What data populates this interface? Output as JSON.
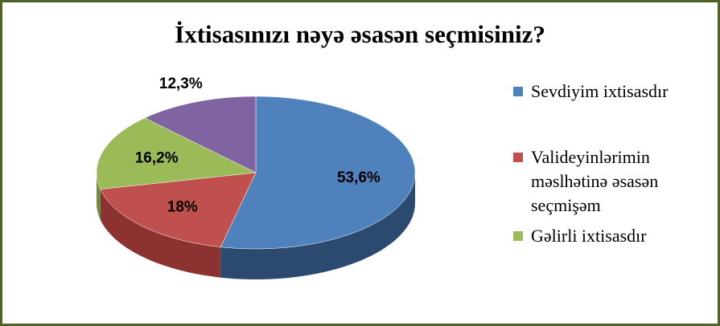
{
  "chart_data": {
    "type": "pie3d",
    "title": "İxtisasınızı nəyə əsasən seçmisiniz?",
    "categories": [
      "Sevdiyim ixtisasdır",
      "Valideyinlərimin məslhətinə əsasən seçmişəm",
      "Gəlirli ixtisasdır",
      null
    ],
    "values": [
      53.6,
      18,
      16.2,
      12.3
    ],
    "value_labels": [
      "53,6%",
      "18%",
      "16,2%",
      "12,3%"
    ],
    "colors": [
      "#4f81bd",
      "#c0504d",
      "#9bbb59",
      "#8064a2"
    ],
    "side_colors": [
      "#2c4a70",
      "#8c3331",
      "#718a3f",
      "#5a457a"
    ],
    "legend": "right"
  }
}
